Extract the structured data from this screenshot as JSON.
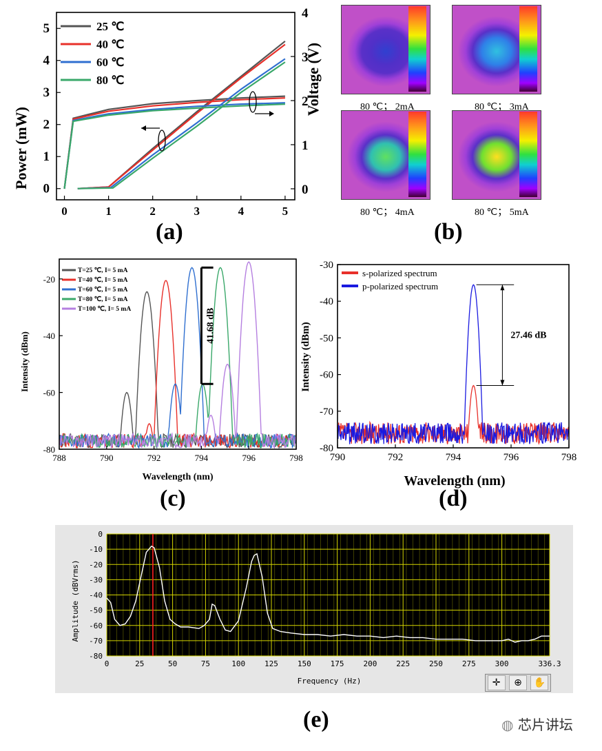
{
  "chart_data": [
    {
      "panel": "(a)",
      "type": "line",
      "xlim": [
        0,
        5
      ],
      "ylim": [
        0,
        5.5
      ],
      "y2lim": [
        0,
        4
      ],
      "xticks": [
        "0",
        "1",
        "2",
        "3",
        "4",
        "5"
      ],
      "yticks": [
        "0",
        "1",
        "2",
        "3",
        "4",
        "5"
      ],
      "y2ticks": [
        "0",
        "1",
        "2",
        "3",
        "4"
      ],
      "ylabel": "Power (mW)",
      "y2label": "Voltage (V)",
      "legend_position": "top-left",
      "series": [
        {
          "name": "25 ℃",
          "color": "#555555",
          "power_x": [
            0.3,
            1.0,
            2,
            3,
            4,
            5
          ],
          "power_y": [
            0,
            0.05,
            1.25,
            2.4,
            3.5,
            4.6
          ],
          "voltage_x": [
            0,
            0.2,
            1,
            2,
            3,
            4,
            5
          ],
          "voltage_y": [
            0,
            1.6,
            1.8,
            1.93,
            2.0,
            2.06,
            2.1
          ]
        },
        {
          "name": "40 ℃",
          "color": "#e8302a",
          "power_x": [
            0.3,
            1.0,
            2,
            3,
            4,
            5
          ],
          "power_y": [
            0,
            0.05,
            1.2,
            2.35,
            3.45,
            4.5
          ],
          "voltage_x": [
            0,
            0.2,
            1,
            2,
            3,
            4,
            5
          ],
          "voltage_y": [
            0,
            1.58,
            1.76,
            1.88,
            1.96,
            2.02,
            2.06
          ]
        },
        {
          "name": "60 ℃",
          "color": "#2f6fd0",
          "power_x": [
            0.3,
            1.05,
            2,
            3,
            4,
            5
          ],
          "power_y": [
            0,
            0.03,
            1.05,
            2.05,
            3.1,
            4.05
          ],
          "voltage_x": [
            0,
            0.2,
            1,
            2,
            3,
            4,
            5
          ],
          "voltage_y": [
            0,
            1.55,
            1.7,
            1.8,
            1.87,
            1.92,
            1.95
          ]
        },
        {
          "name": "80 ℃",
          "color": "#3aa86a",
          "power_x": [
            0.3,
            1.1,
            2,
            3,
            4,
            5
          ],
          "power_y": [
            0,
            0.02,
            0.95,
            1.95,
            3.0,
            3.95
          ],
          "voltage_x": [
            0,
            0.2,
            1,
            2,
            3,
            4,
            5
          ],
          "voltage_y": [
            0,
            1.53,
            1.67,
            1.77,
            1.83,
            1.88,
            1.92
          ]
        }
      ]
    },
    {
      "panel": "(b)",
      "type": "heatmap",
      "images": [
        {
          "caption": "80 ℃； 2mA",
          "spot_intensity": 0.12
        },
        {
          "caption": "80 ℃； 3mA",
          "spot_intensity": 0.3
        },
        {
          "caption": "80 ℃； 4mA",
          "spot_intensity": 0.62
        },
        {
          "caption": "80 ℃； 5mA",
          "spot_intensity": 0.82
        }
      ]
    },
    {
      "panel": "(c)",
      "type": "line",
      "xlabel": "Wavelength (nm)",
      "ylabel": "Intensity (dBm)",
      "xlim": [
        788,
        798
      ],
      "ylim": [
        -80,
        -13
      ],
      "xticks": [
        "788",
        "790",
        "792",
        "794",
        "796",
        "798"
      ],
      "yticks": [
        "-80",
        "-60",
        "-40",
        "-20"
      ],
      "noise_floor": -76,
      "annotation": "41.68 dB",
      "legend_position": "top-left",
      "series": [
        {
          "name": "T=25 ℃,  I= 5 mA",
          "color": "#555555",
          "peaks": [
            [
              791.7,
              -24.5
            ],
            [
              790.85,
              -60
            ]
          ]
        },
        {
          "name": "T=40 ℃,  I= 5 mA",
          "color": "#e8302a",
          "peaks": [
            [
              792.5,
              -20.5
            ],
            [
              791.8,
              -71
            ]
          ]
        },
        {
          "name": "T=60 ℃,  I= 5 mA",
          "color": "#2f6fd0",
          "peaks": [
            [
              793.6,
              -16
            ],
            [
              792.9,
              -57
            ]
          ]
        },
        {
          "name": "T=80 ℃,  I= 5 mA",
          "color": "#3aa86a",
          "peaks": [
            [
              794.8,
              -16
            ],
            [
              794.05,
              -57
            ]
          ]
        },
        {
          "name": "T=100 ℃,  I= 5 mA",
          "color": "#b57fe0",
          "peaks": [
            [
              796.0,
              -14
            ],
            [
              795.1,
              -50
            ],
            [
              794.4,
              -68
            ]
          ]
        }
      ]
    },
    {
      "panel": "(d)",
      "type": "line",
      "xlabel": "Wavelength (nm)",
      "ylabel": "Intensity (dBm)",
      "xlim": [
        790,
        798
      ],
      "ylim": [
        -80,
        -30
      ],
      "xticks": [
        "790",
        "792",
        "794",
        "796",
        "798"
      ],
      "yticks": [
        "-80",
        "-70",
        "-60",
        "-50",
        "-40",
        "-30"
      ],
      "annotation": "27.46 dB",
      "legend_position": "top-left",
      "series": [
        {
          "name": "s-polarized  spectrum",
          "color": "#e8302a",
          "peak": [
            794.7,
            -63
          ]
        },
        {
          "name": "p-polarized  spectrum",
          "color": "#1a1ae0",
          "peak": [
            794.7,
            -35.5
          ]
        }
      ]
    },
    {
      "panel": "(e)",
      "type": "line",
      "xlabel": "Frequency (Hz)",
      "ylabel": "Amplitude (dBVrms)",
      "xlim": [
        0,
        336.3
      ],
      "ylim": [
        -80,
        0
      ],
      "xticks": [
        "0",
        "25",
        "50",
        "75",
        "100",
        "125",
        "150",
        "175",
        "200",
        "225",
        "250",
        "275",
        "300",
        "336.3"
      ],
      "yticks": [
        "0",
        "-10",
        "-20",
        "-30",
        "-40",
        "-50",
        "-60",
        "-70",
        "-80"
      ],
      "cursor_x": 35,
      "line_color": "#ffffff",
      "x": [
        0,
        3,
        6,
        10,
        14,
        18,
        22,
        26,
        30,
        34,
        36,
        40,
        44,
        48,
        52,
        56,
        62,
        70,
        74,
        78,
        80,
        82,
        86,
        90,
        94,
        100,
        106,
        110,
        112,
        114,
        118,
        122,
        126,
        132,
        140,
        150,
        160,
        170,
        180,
        190,
        200,
        210,
        220,
        230,
        240,
        250,
        260,
        270,
        280,
        290,
        300,
        305,
        310,
        315,
        320,
        325,
        330,
        336.3
      ],
      "y": [
        -42,
        -45,
        -56,
        -60,
        -59,
        -54,
        -44,
        -28,
        -12,
        -8,
        -9,
        -22,
        -44,
        -56,
        -59,
        -61,
        -61,
        -62,
        -60,
        -56,
        -46,
        -47,
        -56,
        -63,
        -64,
        -57,
        -35,
        -18,
        -14,
        -13,
        -28,
        -52,
        -62,
        -64,
        -65,
        -66,
        -66,
        -67,
        -66,
        -67,
        -67,
        -68,
        -67,
        -68,
        -68,
        -69,
        -69,
        -69,
        -70,
        -70,
        -70,
        -69,
        -71,
        -70,
        -70,
        -69,
        -67,
        -67
      ]
    }
  ],
  "panel_labels": {
    "a": "(a)",
    "b": "(b)",
    "c": "(c)",
    "d": "(d)",
    "e": "(e)"
  },
  "axis_titles": {
    "a_left": "Power (mW)",
    "a_right": "Voltage (V)",
    "c_x": "Wavelength (nm)",
    "c_y": "Intensity (dBm)",
    "d_x": "Wavelength (nm)",
    "d_y": "Intensity (dBm)",
    "e_x": "Frequency (Hz)",
    "e_y": "Amplitude (dBVrms)"
  },
  "annotations": {
    "c_gap": "41.68 dB",
    "d_gap": "27.46 dB"
  },
  "e_toolbar": {
    "icons": [
      "crosshair-icon",
      "zoom-icon",
      "pan-hand-icon"
    ],
    "glyphs": [
      "✛",
      "⊕",
      "✋"
    ]
  },
  "watermark": "芯片讲坛"
}
